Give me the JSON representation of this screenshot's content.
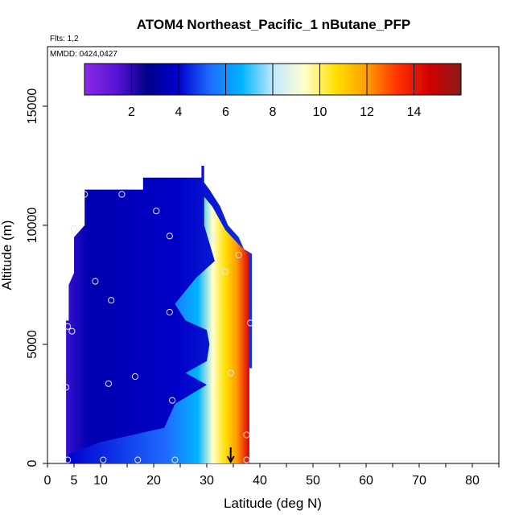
{
  "chart_data": {
    "type": "heatmap",
    "title": "ATOM4 Northeast_Pacific_1 nButane_PFP",
    "flights_label": "Flts: 1,2",
    "mmdd_label": "MMDD: 0424,0427",
    "xlabel": "Latitude (deg N)",
    "ylabel": "Altitude (m)",
    "xlim": [
      0,
      85
    ],
    "ylim": [
      0,
      17500
    ],
    "x_ticks": [
      0,
      5,
      10,
      20,
      30,
      40,
      50,
      60,
      70,
      80
    ],
    "x_tick_labels": [
      "0",
      "5",
      "10",
      "20",
      "30",
      "40",
      "50",
      "60",
      "70",
      "80"
    ],
    "y_ticks": [
      0,
      5000,
      10000,
      15000
    ],
    "y_tick_labels": [
      "0",
      "5000",
      "10000",
      "15000"
    ],
    "colorbar": {
      "min": 0,
      "max": 16,
      "ticks": [
        2,
        4,
        6,
        8,
        10,
        12,
        14
      ],
      "tick_labels": [
        "2",
        "4",
        "6",
        "8",
        "10",
        "12",
        "14"
      ],
      "colors": [
        "#8a2be2",
        "#5a14d8",
        "#00008b",
        "#0000cd",
        "#1e6bff",
        "#00b4ff",
        "#bfe8ff",
        "#ffffd0",
        "#ffe000",
        "#ff9d00",
        "#ff3000",
        "#d00000",
        "#8b1a1a"
      ]
    },
    "region_outline": [
      [
        3.5,
        0
      ],
      [
        38,
        0
      ],
      [
        38,
        1000
      ],
      [
        38,
        3000
      ],
      [
        38,
        4000
      ],
      [
        38.5,
        4000
      ],
      [
        38.5,
        7500
      ],
      [
        38.5,
        8800
      ],
      [
        37,
        9000
      ],
      [
        36,
        9500
      ],
      [
        34,
        10000
      ],
      [
        32.5,
        10800
      ],
      [
        30.5,
        11500
      ],
      [
        29.5,
        11800
      ],
      [
        29.5,
        12500
      ],
      [
        29,
        12500
      ],
      [
        29,
        12000
      ],
      [
        18,
        12000
      ],
      [
        18,
        11500
      ],
      [
        7,
        11500
      ],
      [
        7,
        10000
      ],
      [
        5,
        9500
      ],
      [
        5,
        8000
      ],
      [
        4,
        7500
      ],
      [
        4,
        6000
      ],
      [
        3.5,
        6000
      ]
    ],
    "warm_plume": [
      [
        38,
        0
      ],
      [
        38,
        8800
      ],
      [
        36,
        9200
      ],
      [
        33.5,
        9800
      ],
      [
        31,
        10800
      ],
      [
        29.5,
        11200
      ],
      [
        29.5,
        10000
      ],
      [
        31.5,
        8500
      ],
      [
        28,
        7800
      ],
      [
        24,
        6700
      ],
      [
        26,
        6000
      ],
      [
        30,
        5600
      ],
      [
        30.5,
        5000
      ],
      [
        30,
        4300
      ],
      [
        26,
        3800
      ],
      [
        30,
        3300
      ],
      [
        24,
        2500
      ],
      [
        22,
        1500
      ],
      [
        10,
        900
      ],
      [
        4,
        400
      ],
      [
        3.5,
        0
      ]
    ],
    "samples": [
      {
        "lat": 7.0,
        "alt": 11300
      },
      {
        "lat": 14.0,
        "alt": 11300
      },
      {
        "lat": 20.5,
        "alt": 10600
      },
      {
        "lat": 5.0,
        "alt": 9850
      },
      {
        "lat": 23.0,
        "alt": 9550
      },
      {
        "lat": 31.0,
        "alt": 9450
      },
      {
        "lat": 36.0,
        "alt": 8750
      },
      {
        "lat": 33.5,
        "alt": 8050
      },
      {
        "lat": 9.0,
        "alt": 7650
      },
      {
        "lat": 12.0,
        "alt": 6850
      },
      {
        "lat": 23.0,
        "alt": 6350
      },
      {
        "lat": 3.8,
        "alt": 5750
      },
      {
        "lat": 4.6,
        "alt": 5550
      },
      {
        "lat": 38.2,
        "alt": 5900
      },
      {
        "lat": 34.5,
        "alt": 3800
      },
      {
        "lat": 16.5,
        "alt": 3650
      },
      {
        "lat": 11.5,
        "alt": 3350
      },
      {
        "lat": 3.5,
        "alt": 3200
      },
      {
        "lat": 23.5,
        "alt": 2650
      },
      {
        "lat": 37.5,
        "alt": 1200
      },
      {
        "lat": 3.8,
        "alt": 150
      },
      {
        "lat": 10.5,
        "alt": 150
      },
      {
        "lat": 17.0,
        "alt": 150
      },
      {
        "lat": 24.0,
        "alt": 150
      },
      {
        "lat": 37.5,
        "alt": 150
      }
    ],
    "arrow_lat": 34.5
  }
}
